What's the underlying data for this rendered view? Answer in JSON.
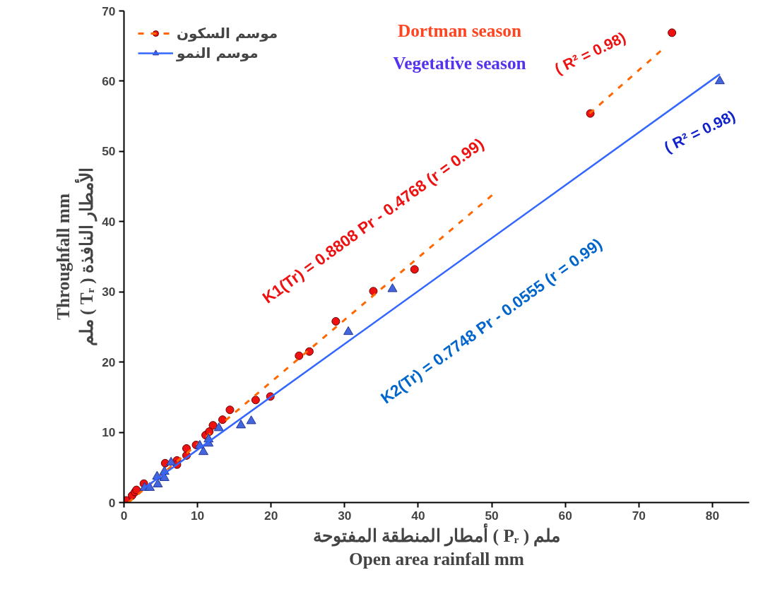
{
  "chart_data": {
    "type": "scatter",
    "xlabel": "أمطار المنطقة المفتوحة ( Pᵣ ) ملم\nOpen area rainfall mm",
    "ylabel": "Throughfall mm\nملم ( Tᵣ ) الأمطار النافذة",
    "xlim": [
      0,
      85
    ],
    "ylim": [
      0,
      70
    ],
    "xticks": [
      0,
      10,
      20,
      30,
      40,
      50,
      60,
      70,
      80
    ],
    "yticks": [
      0,
      10,
      20,
      30,
      40,
      50,
      60,
      70
    ],
    "grid": false,
    "legend": "top left",
    "series": [
      {
        "name": "موسم السكون",
        "marker": "circle",
        "color": "#ee1111",
        "x": [
          0.3,
          1.1,
          1.5,
          1.7,
          2.7,
          5.6,
          7.2,
          7.2,
          8.5,
          8.5,
          9.8,
          11.1,
          11.6,
          12.1,
          13.4,
          14.4,
          17.9,
          19.9,
          23.8,
          25.2,
          28.8,
          33.9,
          39.5,
          63.4,
          74.5
        ],
        "values": [
          0.3,
          1.0,
          1.5,
          1.8,
          2.7,
          5.6,
          6.0,
          5.4,
          6.7,
          7.7,
          8.2,
          9.6,
          10.1,
          11.0,
          11.8,
          13.2,
          14.6,
          15.1,
          20.9,
          21.5,
          25.8,
          30.1,
          33.2,
          55.4,
          66.9
        ]
      },
      {
        "type": "line",
        "line_style": "dashed",
        "color": "#ff6600",
        "x": [
          0.6,
          50.2,
          57,
          63.3,
          73.5
        ],
        "values": [
          0,
          43.9,
          null,
          55.4,
          64.8
        ]
      },
      {
        "name": "موسم النمو",
        "marker": "triangle",
        "color": "#4466dd",
        "x": [
          2.8,
          3.5,
          4.5,
          4.6,
          5.5,
          5.5,
          6.4,
          10.3,
          10.8,
          11.5,
          11.5,
          12.9,
          15.9,
          17.3,
          30.5,
          36.5,
          81.0
        ],
        "values": [
          2.1,
          2.1,
          3.7,
          2.6,
          3.5,
          4.4,
          5.7,
          8.1,
          7.2,
          8.4,
          9.0,
          10.6,
          11.0,
          11.6,
          24.3,
          30.4,
          60.0
        ]
      },
      {
        "type": "line",
        "line_style": "solid",
        "color": "#3366ff",
        "x": [
          2.8,
          81.0
        ],
        "values": [
          2.1,
          61.0
        ]
      }
    ],
    "annotations": [
      "Dortman season",
      "Vegetative season",
      "K1(Tr) = 0.8808 Pr - 0.4768  (r = 0.99)",
      "K2(Tr) = 0.7748 Pr  - 0.0555  (r = 0.99)",
      "( R² = 0.98)",
      "( R² = 0.98)"
    ]
  }
}
